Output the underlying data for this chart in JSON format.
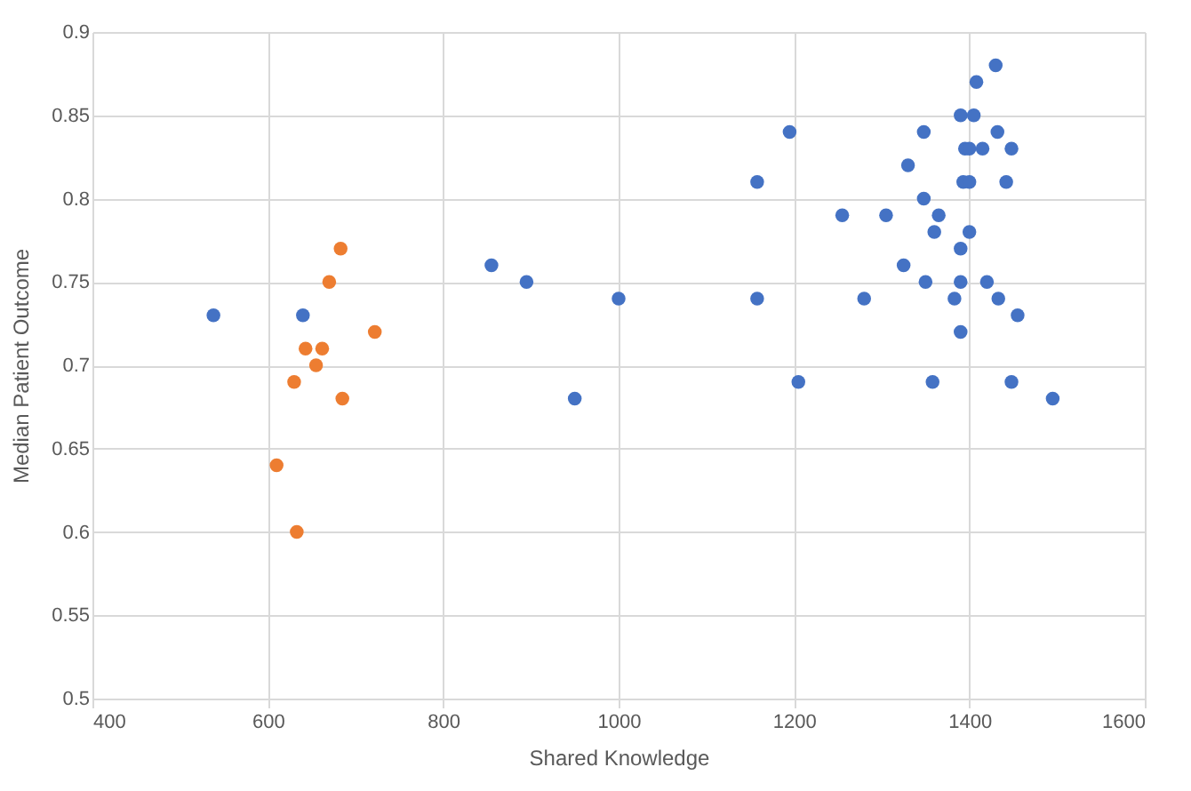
{
  "chart_data": {
    "type": "scatter",
    "xlabel": "Shared Knowledge",
    "ylabel": "Median Patient Outcome",
    "xlim": [
      400,
      1600
    ],
    "xticks": [
      400,
      600,
      800,
      1000,
      1200,
      1400,
      1600
    ],
    "ylim": [
      0.5,
      0.9
    ],
    "yticks": [
      0.5,
      0.55,
      0.6,
      0.65,
      0.7,
      0.75,
      0.8,
      0.85,
      0.9
    ],
    "grid": true,
    "marker": "circle",
    "series": [
      {
        "color": "#4472c4",
        "x": [
          538,
          640,
          855,
          895,
          950,
          1000,
          1158,
          1158,
          1195,
          1205,
          1255,
          1280,
          1305,
          1325,
          1330,
          1348,
          1348,
          1350,
          1358,
          1360,
          1365,
          1383,
          1390,
          1390,
          1390,
          1390,
          1393,
          1395,
          1400,
          1400,
          1400,
          1405,
          1408,
          1415,
          1420,
          1430,
          1432,
          1433,
          1442,
          1448,
          1448,
          1455,
          1495
        ],
        "values": [
          0.73,
          0.73,
          0.76,
          0.75,
          0.68,
          0.74,
          0.81,
          0.74,
          0.84,
          0.69,
          0.79,
          0.74,
          0.79,
          0.76,
          0.82,
          0.84,
          0.8,
          0.75,
          0.69,
          0.78,
          0.79,
          0.74,
          0.85,
          0.77,
          0.75,
          0.72,
          0.81,
          0.83,
          0.83,
          0.81,
          0.78,
          0.85,
          0.87,
          0.83,
          0.75,
          0.88,
          0.84,
          0.74,
          0.81,
          0.69,
          0.83,
          0.73,
          0.68
        ]
      },
      {
        "color": "#ed7d31",
        "x": [
          610,
          630,
          633,
          643,
          655,
          662,
          670,
          683,
          685,
          722
        ],
        "values": [
          0.64,
          0.69,
          0.6,
          0.71,
          0.7,
          0.71,
          0.75,
          0.77,
          0.68,
          0.72
        ]
      }
    ]
  }
}
